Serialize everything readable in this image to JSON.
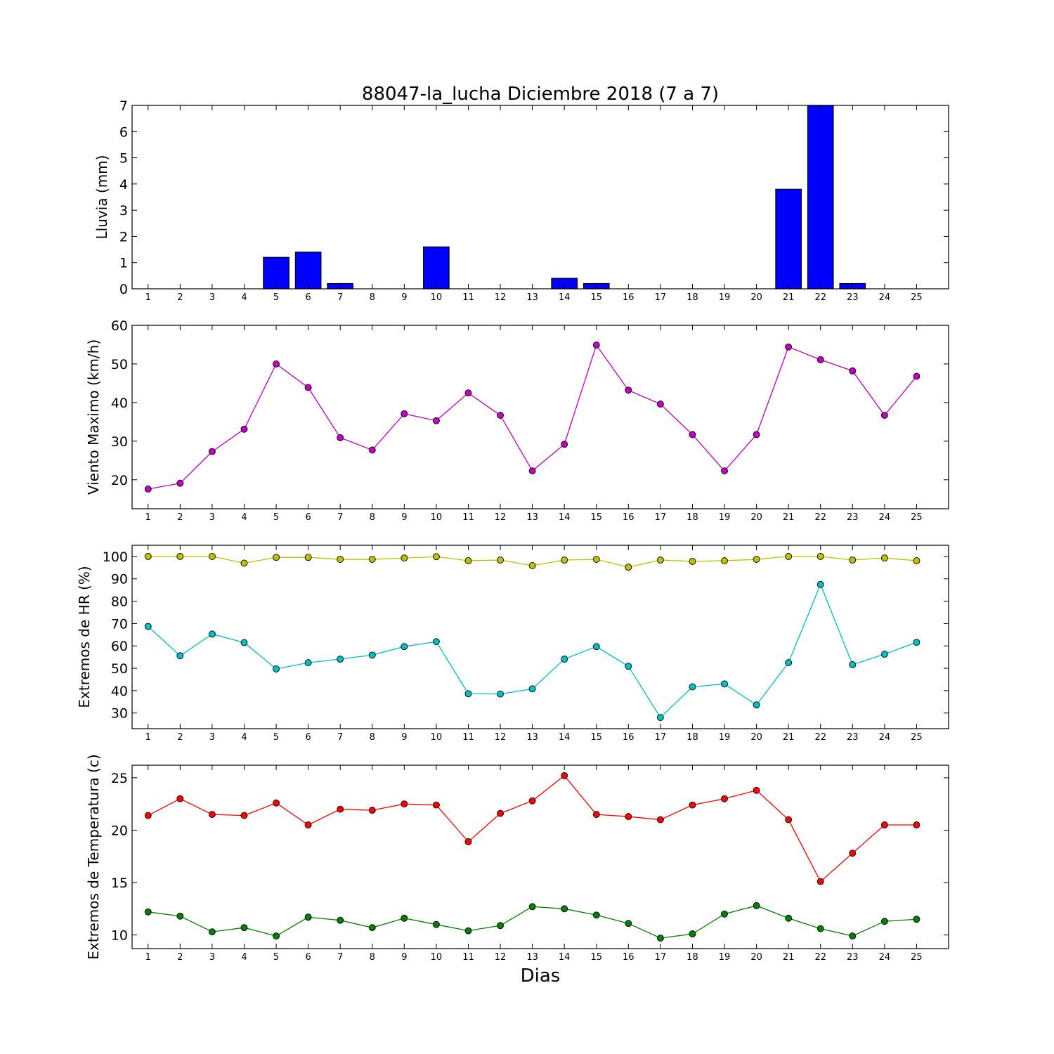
{
  "title": "88047-la_lucha Diciembre 2018  (7 a 7)",
  "xlabel": "Dias",
  "chart_data": [
    {
      "type": "bar",
      "ylabel": "Lluvia (mm)",
      "ylim": [
        0,
        7
      ],
      "yticks": [
        0,
        1,
        2,
        3,
        4,
        5,
        6,
        7
      ],
      "categories": [
        1,
        2,
        3,
        4,
        5,
        6,
        7,
        8,
        9,
        10,
        11,
        12,
        13,
        14,
        15,
        16,
        17,
        18,
        19,
        20,
        21,
        22,
        23,
        24,
        25
      ],
      "series": [
        {
          "color": "#0000ff",
          "values": [
            0,
            0,
            0,
            0,
            1.2,
            1.4,
            0.2,
            0,
            0,
            1.6,
            0,
            0,
            0,
            0.4,
            0.2,
            0,
            0,
            0,
            0,
            0,
            3.8,
            7.0,
            0.2,
            0,
            0
          ]
        }
      ]
    },
    {
      "type": "line",
      "ylabel": "Viento Maximo (km/h)",
      "ylim": [
        12.5,
        60
      ],
      "yticks": [
        20,
        30,
        40,
        50,
        60
      ],
      "categories": [
        1,
        2,
        3,
        4,
        5,
        6,
        7,
        8,
        9,
        10,
        11,
        12,
        13,
        14,
        15,
        16,
        17,
        18,
        19,
        20,
        21,
        22,
        23,
        24,
        25
      ],
      "series": [
        {
          "color": "#bf00bf",
          "values": [
            17.6,
            19.1,
            27.3,
            33.1,
            50.0,
            43.9,
            30.9,
            27.7,
            37.1,
            35.3,
            42.5,
            36.7,
            22.3,
            29.2,
            54.9,
            43.2,
            39.6,
            31.7,
            22.3,
            31.7,
            54.4,
            51.1,
            48.2,
            36.7,
            46.8
          ]
        }
      ]
    },
    {
      "type": "line",
      "ylabel": "Extremos de HR (%)",
      "ylim": [
        23,
        105
      ],
      "yticks": [
        30,
        40,
        50,
        60,
        70,
        80,
        90,
        100
      ],
      "categories": [
        1,
        2,
        3,
        4,
        5,
        6,
        7,
        8,
        9,
        10,
        11,
        12,
        13,
        14,
        15,
        16,
        17,
        18,
        19,
        20,
        21,
        22,
        23,
        24,
        25
      ],
      "series": [
        {
          "color": "#bfbf00",
          "values": [
            100,
            100,
            100,
            97,
            99.6,
            99.6,
            98.7,
            98.7,
            99.3,
            99.9,
            98.1,
            98.4,
            95.9,
            98.4,
            98.7,
            95.2,
            98.4,
            97.8,
            98.1,
            98.7,
            100,
            100,
            98.4,
            99.3,
            98.1
          ]
        },
        {
          "color": "#00bfbf",
          "values": [
            68.7,
            55.6,
            65.3,
            61.5,
            49.7,
            52.5,
            54.1,
            55.9,
            59.7,
            61.9,
            38.6,
            38.5,
            40.8,
            54.1,
            59.7,
            50.9,
            28.0,
            41.7,
            43.0,
            33.6,
            52.5,
            87.5,
            51.6,
            56.3,
            61.6
          ]
        }
      ]
    },
    {
      "type": "line",
      "ylabel": "Extremos de Temperatura (c)",
      "ylim": [
        8.7,
        26.2
      ],
      "yticks": [
        10,
        15,
        20,
        25
      ],
      "categories": [
        1,
        2,
        3,
        4,
        5,
        6,
        7,
        8,
        9,
        10,
        11,
        12,
        13,
        14,
        15,
        16,
        17,
        18,
        19,
        20,
        21,
        22,
        23,
        24,
        25
      ],
      "series": [
        {
          "color": "#ff0000",
          "values": [
            21.4,
            23.0,
            21.5,
            21.4,
            22.6,
            20.5,
            22.0,
            21.9,
            22.5,
            22.4,
            18.9,
            21.6,
            22.8,
            25.2,
            21.5,
            21.3,
            21.0,
            22.4,
            23.0,
            23.8,
            21.0,
            15.1,
            17.8,
            20.5,
            20.5
          ]
        },
        {
          "color": "#008000",
          "values": [
            12.2,
            11.8,
            10.3,
            10.7,
            9.9,
            11.7,
            11.4,
            10.7,
            11.6,
            11.0,
            10.4,
            10.9,
            12.7,
            12.5,
            11.9,
            11.1,
            9.7,
            10.1,
            12.0,
            12.8,
            11.6,
            10.6,
            9.9,
            11.3,
            11.5
          ]
        }
      ]
    }
  ]
}
